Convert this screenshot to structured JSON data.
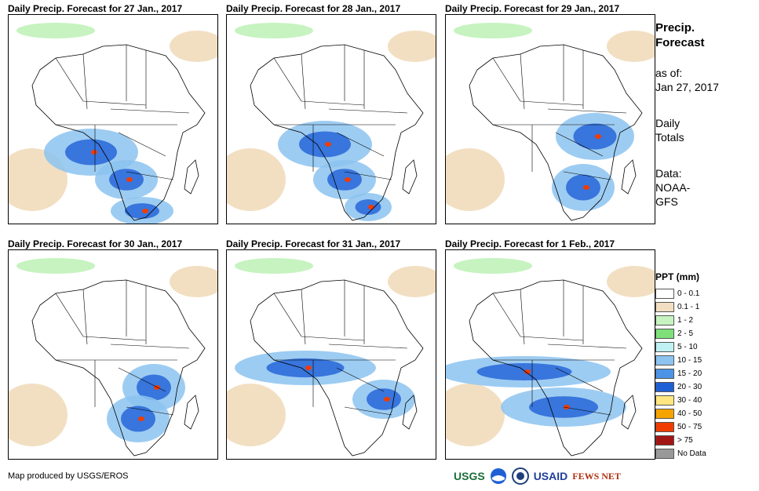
{
  "panels": [
    {
      "title": "Daily Precip. Forecast for 27 Jan., 2017"
    },
    {
      "title": "Daily Precip. Forecast for 28 Jan., 2017"
    },
    {
      "title": "Daily Precip. Forecast for 29 Jan., 2017"
    },
    {
      "title": "Daily Precip. Forecast for 30 Jan., 2017"
    },
    {
      "title": "Daily Precip. Forecast for 31 Jan., 2017"
    },
    {
      "title": "Daily Precip. Forecast for 1 Feb., 2017"
    }
  ],
  "sidebar": {
    "title1": "Precip.",
    "title2": "Forecast",
    "asof_label": "as of:",
    "asof_date": "Jan 27, 2017",
    "totals1": "Daily",
    "totals2": "Totals",
    "data_label": "Data:",
    "data_src1": "NOAA-",
    "data_src2": "GFS"
  },
  "legend": {
    "title": "PPT (mm)",
    "items": [
      {
        "label": "0 - 0.1",
        "color": "#ffffff"
      },
      {
        "label": "0.1 - 1",
        "color": "#f2dfc2"
      },
      {
        "label": "1 - 2",
        "color": "#c6f3c0"
      },
      {
        "label": "2 - 5",
        "color": "#7fe07a"
      },
      {
        "label": "5 - 10",
        "color": "#bff0f3"
      },
      {
        "label": "10 - 15",
        "color": "#8cc3f0"
      },
      {
        "label": "15 - 20",
        "color": "#4d94e6"
      },
      {
        "label": "20 - 30",
        "color": "#1f5fd6"
      },
      {
        "label": "30 - 40",
        "color": "#ffe680"
      },
      {
        "label": "40 - 50",
        "color": "#f5a300"
      },
      {
        "label": "50 - 75",
        "color": "#f03c00"
      },
      {
        "label": "> 75",
        "color": "#a31515"
      },
      {
        "label": "No Data",
        "color": "#999999"
      }
    ]
  },
  "footer": {
    "credit": "Map produced by USGS/EROS"
  },
  "logos": {
    "usgs": "USGS",
    "usaid": "USAID",
    "fews": "FEWS NET"
  }
}
